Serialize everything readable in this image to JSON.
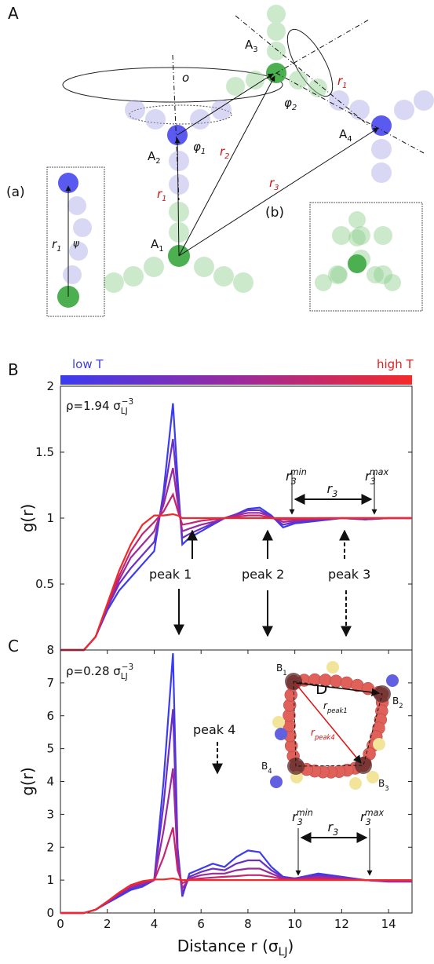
{
  "panel_A": {
    "letter": "A",
    "o": "o",
    "A1": {
      "base": "A",
      "sub": "1"
    },
    "A2": {
      "base": "A",
      "sub": "2"
    },
    "A3": {
      "base": "A",
      "sub": "3"
    },
    "A4": {
      "base": "A",
      "sub": "4"
    },
    "phi1": {
      "base": "φ",
      "sub": "1"
    },
    "phi2": {
      "base": "φ",
      "sub": "2"
    },
    "r1_top": {
      "base": "r",
      "sub": "1"
    },
    "r1_mid": {
      "base": "r",
      "sub": "1"
    },
    "r2": {
      "base": "r",
      "sub": "2"
    },
    "r3": {
      "base": "r",
      "sub": "3"
    },
    "inset_a": "(a)",
    "inset_b": "(b)",
    "a_r1": {
      "base": "r",
      "sub": "1"
    },
    "psi": "ψ"
  },
  "colorbar": {
    "low": "low T",
    "high": "high T"
  },
  "panel_D": {
    "letter": "D",
    "B1": {
      "base": "B",
      "sub": "1"
    },
    "B2": {
      "base": "B",
      "sub": "2"
    },
    "B3": {
      "base": "B",
      "sub": "3"
    },
    "B4": {
      "base": "B",
      "sub": "4"
    },
    "rpeak1": {
      "base": "r",
      "sub": "peak1"
    },
    "rpeak4": {
      "base": "r",
      "sub": "peak4"
    }
  },
  "chart_data": [
    {
      "type": "line",
      "panel": "B",
      "ylabel": "g(r)",
      "density": {
        "text": "ρ=1.94 σ",
        "sub": "LJ",
        "sup": "−3"
      },
      "annotations": [
        "peak 1",
        "peak 2",
        "peak 3"
      ],
      "r3_min": {
        "base": "r",
        "sub": "3",
        "sup": "min"
      },
      "r3": {
        "base": "r",
        "sub": "3"
      },
      "r3_max": {
        "base": "r",
        "sub": "3",
        "sup": "max"
      },
      "x": [
        0,
        1,
        1.5,
        2,
        2.5,
        3,
        3.5,
        4,
        4.4,
        4.8,
        5,
        5.2,
        5.5,
        6,
        6.5,
        7,
        7.5,
        8,
        8.5,
        9,
        9.5,
        10,
        11,
        12,
        13,
        14,
        15
      ],
      "xlim": [
        0,
        15
      ],
      "ylim": [
        0,
        2
      ],
      "yticks": [
        0.5,
        1,
        1.5,
        2
      ],
      "series": [
        {
          "color": "#3b3bf0",
          "values": [
            0,
            0,
            0.1,
            0.3,
            0.45,
            0.55,
            0.65,
            0.75,
            1.2,
            1.87,
            1.3,
            0.8,
            0.85,
            0.9,
            0.95,
            1.0,
            1.03,
            1.07,
            1.08,
            1.02,
            0.93,
            0.96,
            0.98,
            1.0,
            0.99,
            1.0,
            1.0
          ]
        },
        {
          "color": "#6a2fc8",
          "values": [
            0,
            0,
            0.1,
            0.32,
            0.5,
            0.62,
            0.72,
            0.82,
            1.15,
            1.6,
            1.2,
            0.85,
            0.88,
            0.92,
            0.96,
            1.0,
            1.03,
            1.06,
            1.06,
            1.01,
            0.95,
            0.97,
            0.99,
            1.0,
            0.99,
            1.0,
            1.0
          ]
        },
        {
          "color": "#9a2a9e",
          "values": [
            0,
            0,
            0.1,
            0.33,
            0.53,
            0.7,
            0.8,
            0.9,
            1.1,
            1.38,
            1.12,
            0.9,
            0.92,
            0.95,
            0.97,
            1.0,
            1.02,
            1.04,
            1.04,
            1.01,
            0.97,
            0.98,
            0.99,
            1.0,
            1.0,
            1.0,
            1.0
          ]
        },
        {
          "color": "#c52570",
          "values": [
            0,
            0,
            0.1,
            0.34,
            0.56,
            0.75,
            0.88,
            0.97,
            1.05,
            1.18,
            1.06,
            0.95,
            0.96,
            0.98,
            0.99,
            1.0,
            1.01,
            1.02,
            1.02,
            1.0,
            0.99,
            0.99,
            1.0,
            1.0,
            1.0,
            1.0,
            1.0
          ]
        },
        {
          "color": "#f02a2a",
          "values": [
            0,
            0,
            0.1,
            0.35,
            0.6,
            0.8,
            0.95,
            1.02,
            1.02,
            1.03,
            1.02,
            1.0,
            1.0,
            1.0,
            1.0,
            1.0,
            1.0,
            1.0,
            1.0,
            1.0,
            1.0,
            1.0,
            1.0,
            1.0,
            1.0,
            1.0,
            1.0
          ]
        }
      ]
    },
    {
      "type": "line",
      "panel": "C",
      "ylabel": "g(r)",
      "xlabel": {
        "text": "Distance r (σ",
        "sub": "LJ",
        "tail": ")"
      },
      "density": {
        "text": "ρ=0.28 σ",
        "sub": "LJ",
        "sup": "−3"
      },
      "annotations": [
        "peak 4"
      ],
      "r3_min": {
        "base": "r",
        "sub": "3",
        "sup": "min"
      },
      "r3": {
        "base": "r",
        "sub": "3"
      },
      "r3_max": {
        "base": "r",
        "sub": "3",
        "sup": "max"
      },
      "x": [
        0,
        1,
        1.5,
        2,
        2.5,
        3,
        3.5,
        4,
        4.4,
        4.8,
        5,
        5.2,
        5.5,
        6,
        6.5,
        7,
        7.5,
        8,
        8.5,
        9,
        9.5,
        10,
        11,
        12,
        13,
        14,
        15
      ],
      "xlim": [
        0,
        15
      ],
      "xticks": [
        0,
        2,
        4,
        6,
        8,
        10,
        12,
        14
      ],
      "ylim": [
        0,
        8
      ],
      "yticks": [
        0,
        1,
        2,
        3,
        4,
        5,
        6,
        7,
        8
      ],
      "series": [
        {
          "color": "#3b3bf0",
          "values": [
            0,
            0,
            0.1,
            0.3,
            0.5,
            0.7,
            0.8,
            1.0,
            4.0,
            7.9,
            2.0,
            0.5,
            1.2,
            1.35,
            1.5,
            1.4,
            1.7,
            1.9,
            1.85,
            1.4,
            1.1,
            1.05,
            1.2,
            1.1,
            1.0,
            0.95,
            0.95
          ]
        },
        {
          "color": "#6a2fc8",
          "values": [
            0,
            0,
            0.1,
            0.32,
            0.55,
            0.75,
            0.85,
            1.0,
            3.3,
            6.2,
            1.8,
            0.6,
            1.1,
            1.25,
            1.35,
            1.3,
            1.5,
            1.6,
            1.6,
            1.3,
            1.08,
            1.05,
            1.15,
            1.08,
            1.0,
            0.96,
            0.96
          ]
        },
        {
          "color": "#9a2a9e",
          "values": [
            0,
            0,
            0.1,
            0.33,
            0.58,
            0.8,
            0.9,
            1.0,
            2.5,
            4.4,
            1.6,
            0.75,
            1.05,
            1.15,
            1.2,
            1.2,
            1.3,
            1.35,
            1.35,
            1.2,
            1.05,
            1.03,
            1.1,
            1.05,
            1.0,
            0.97,
            0.97
          ]
        },
        {
          "color": "#c52570",
          "values": [
            0,
            0,
            0.1,
            0.34,
            0.6,
            0.82,
            0.93,
            1.0,
            1.7,
            2.6,
            1.3,
            0.9,
            1.02,
            1.05,
            1.08,
            1.1,
            1.12,
            1.15,
            1.15,
            1.1,
            1.03,
            1.02,
            1.05,
            1.02,
            1.0,
            0.98,
            0.98
          ]
        },
        {
          "color": "#f02a2a",
          "values": [
            0,
            0,
            0.1,
            0.35,
            0.62,
            0.85,
            0.97,
            1.02,
            1.02,
            1.05,
            1.02,
            1.0,
            1.0,
            1.0,
            1.0,
            1.0,
            1.0,
            1.0,
            1.0,
            1.0,
            1.0,
            1.0,
            1.0,
            1.0,
            1.0,
            1.0,
            1.0
          ]
        }
      ]
    }
  ]
}
